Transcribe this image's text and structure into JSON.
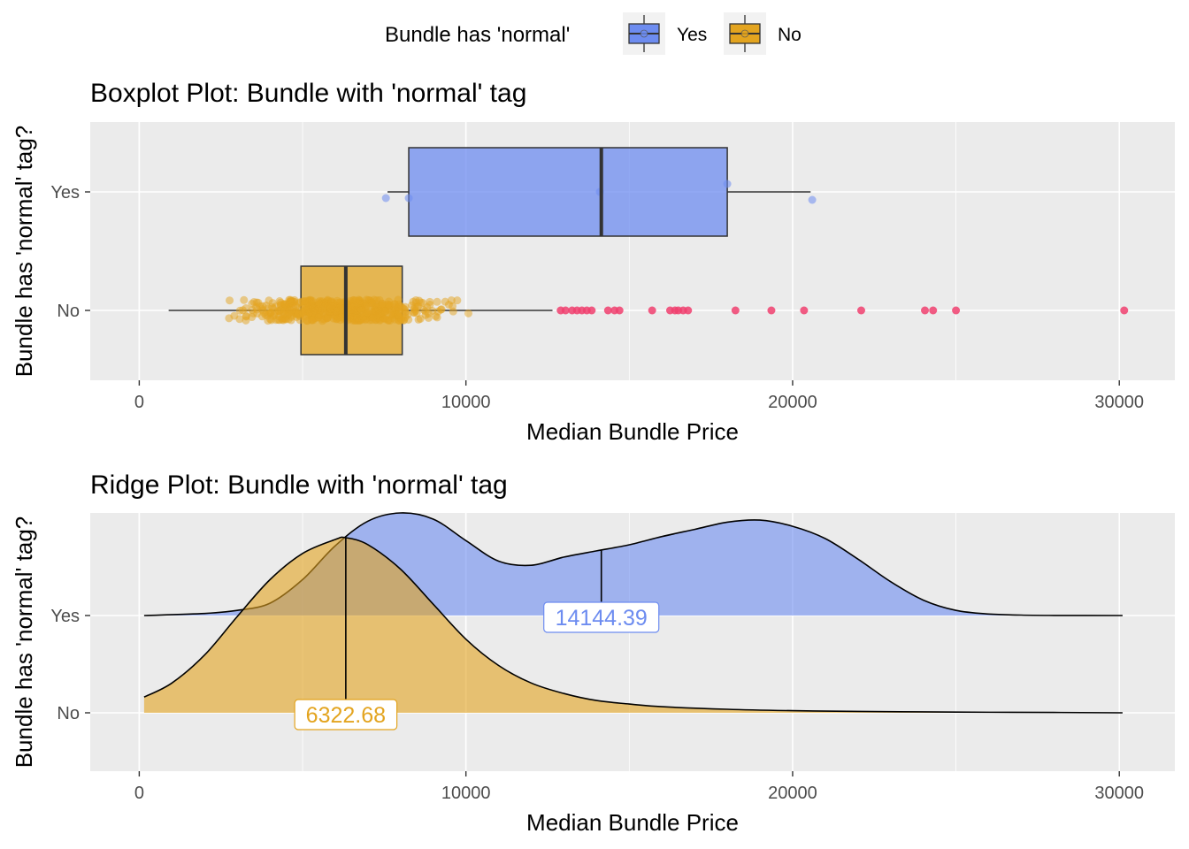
{
  "legend": {
    "title": "Bundle has 'normal'",
    "items": [
      {
        "label": "Yes",
        "fill": "#6d8cf0"
      },
      {
        "label": "No",
        "fill": "#e3a41f"
      }
    ]
  },
  "colors": {
    "yes": "#6d8cf0",
    "no": "#e3a41f",
    "outlier": "#f0406e",
    "panel": "#ebebeb"
  },
  "chart_data": [
    {
      "type": "boxplot",
      "title": "Boxplot Plot: Bundle with 'normal' tag",
      "xlabel": "Median Bundle Price",
      "ylabel": "Bundle has 'normal' tag?",
      "xlim": [
        -1500,
        31700
      ],
      "xticks": [
        0,
        10000,
        20000,
        30000
      ],
      "categories": [
        "Yes",
        "No"
      ],
      "series": [
        {
          "name": "Yes",
          "whisker_low": 7600,
          "q1": 8250,
          "median": 14144.39,
          "q3": 18000,
          "whisker_high": 20550,
          "points": [
            7550,
            8250,
            14100,
            18000,
            20600
          ]
        },
        {
          "name": "No",
          "whisker_low": 900,
          "q1": 4950,
          "median": 6322.68,
          "q3": 8050,
          "whisker_high": 12650,
          "jitter_range": [
            1900,
            11100
          ],
          "outliers": [
            12900,
            13050,
            13250,
            13400,
            13550,
            13700,
            13850,
            14350,
            14550,
            14700,
            15700,
            16250,
            16400,
            16500,
            16650,
            16800,
            18250,
            19350,
            20350,
            22100,
            24050,
            24300,
            25000,
            30150
          ]
        }
      ]
    },
    {
      "type": "ridge",
      "title": "Ridge Plot: Bundle with 'normal' tag",
      "xlabel": "Median Bundle Price",
      "ylabel": "Bundle has 'normal' tag?",
      "xlim": [
        -1500,
        31700
      ],
      "xticks": [
        0,
        10000,
        20000,
        30000
      ],
      "categories": [
        "Yes",
        "No"
      ],
      "series": [
        {
          "name": "Yes",
          "median": 14144.39,
          "median_label": "14144.39",
          "x": [
            150,
            2000,
            3000,
            4000,
            5000,
            6000,
            7000,
            8000,
            9000,
            10000,
            11000,
            12000,
            13000,
            14000,
            15000,
            16000,
            17000,
            18000,
            19000,
            20000,
            21000,
            22000,
            23000,
            24000,
            25000,
            26000,
            27000,
            28000,
            30100
          ],
          "density": [
            0.0,
            0.02,
            0.05,
            0.12,
            0.35,
            0.68,
            0.92,
            1.0,
            0.94,
            0.73,
            0.53,
            0.49,
            0.57,
            0.63,
            0.69,
            0.77,
            0.84,
            0.91,
            0.93,
            0.87,
            0.75,
            0.55,
            0.33,
            0.15,
            0.05,
            0.015,
            0.004,
            0.001,
            0.0
          ]
        },
        {
          "name": "No",
          "median": 6322.68,
          "median_label": "6322.68",
          "x": [
            150,
            1000,
            2000,
            3000,
            4000,
            5000,
            6000,
            6322.68,
            7000,
            8000,
            9000,
            10000,
            11000,
            12000,
            13000,
            14000,
            15000,
            16000,
            18000,
            20000,
            22000,
            25000,
            28000,
            30100
          ],
          "density": [
            0.09,
            0.17,
            0.33,
            0.55,
            0.76,
            0.91,
            0.99,
            1.0,
            0.96,
            0.82,
            0.62,
            0.42,
            0.27,
            0.17,
            0.11,
            0.07,
            0.05,
            0.035,
            0.02,
            0.012,
            0.008,
            0.004,
            0.002,
            0.0
          ]
        }
      ]
    }
  ]
}
